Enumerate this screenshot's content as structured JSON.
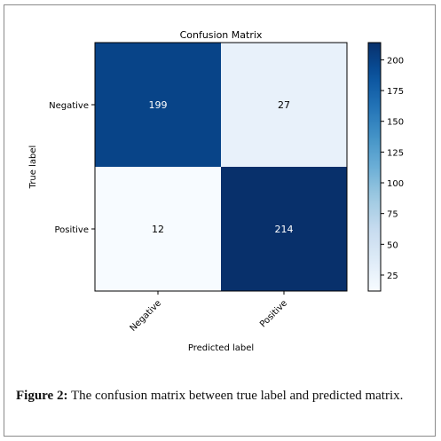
{
  "chart_data": {
    "type": "heatmap",
    "title": "Confusion Matrix",
    "xlabel": "Predicted label",
    "ylabel": "True label",
    "row_labels": [
      "Negative",
      "Positive"
    ],
    "col_labels": [
      "Negative",
      "Positive"
    ],
    "values": [
      [
        199,
        27
      ],
      [
        12,
        214
      ]
    ],
    "colormap": "Blues",
    "colorbar_range": [
      12,
      214
    ],
    "colorbar_ticks": [
      25,
      50,
      75,
      100,
      125,
      150,
      175,
      200
    ]
  },
  "caption": {
    "label": "Figure 2:",
    "text": " The confusion matrix between true label and predicted matrix."
  }
}
